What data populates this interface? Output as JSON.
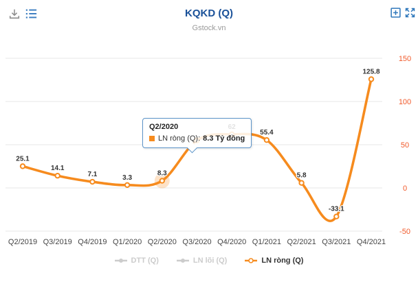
{
  "header": {
    "title": "KQKD (Q)",
    "subtitle": "Gstock.vn"
  },
  "toolbar": {
    "icons": [
      {
        "name": "download-icon",
        "color": "#8d8d8d"
      },
      {
        "name": "chart-context-menu-icon",
        "color": "#3e7fc1"
      },
      {
        "name": "plus-square-icon",
        "color": "#2e77bb"
      },
      {
        "name": "fullscreen-icon",
        "color": "#2e77bb"
      }
    ]
  },
  "tooltip": {
    "title": "Q2/2020",
    "series": "LN ròng (Q)",
    "separator": ":",
    "value": "8.3 Tỷ đồng",
    "marker_color": "#f68b1e",
    "border_color": "#5b93c8"
  },
  "legend": {
    "items": [
      {
        "label": "DTT (Q)",
        "enabled": false
      },
      {
        "label": "LN lõi (Q)",
        "enabled": false
      },
      {
        "label": "LN ròng (Q)",
        "enabled": true,
        "color": "#f68b1e"
      }
    ]
  },
  "colors": {
    "series_line": "#f68b1e",
    "y_axis_labels": "#f1592a",
    "x_axis_labels": "#444444",
    "grid": "#e7e7e7",
    "data_labels": "#333333",
    "title": "#1a5199",
    "subtitle": "#9a9a9a"
  },
  "chart_data": {
    "type": "line",
    "title": "KQKD (Q)",
    "subtitle": "Gstock.vn",
    "unit": "Tỷ đồng",
    "categories": [
      "Q2/2019",
      "Q3/2019",
      "Q4/2019",
      "Q1/2020",
      "Q2/2020",
      "Q3/2020",
      "Q4/2020",
      "Q1/2021",
      "Q2/2021",
      "Q3/2021",
      "Q4/2021"
    ],
    "series": [
      {
        "name": "LN ròng (Q)",
        "color": "#f68b1e",
        "visible": true,
        "values": [
          25.1,
          14.1,
          7.1,
          3.3,
          8.3,
          55,
          62,
          55.4,
          5.8,
          -33.1,
          125.8
        ],
        "visible_labels": [
          "25.1",
          "14.1",
          "7.1",
          "3.3",
          "8.3",
          null,
          "62",
          "55.4",
          "5.8",
          "-33.1",
          "125.8"
        ]
      },
      {
        "name": "DTT (Q)",
        "visible": false
      },
      {
        "name": "LN lõi (Q)",
        "visible": false
      }
    ],
    "hovered_point": {
      "series": "LN ròng (Q)",
      "category": "Q2/2020",
      "index": 4,
      "value": 8.3
    },
    "y_axis": {
      "position": "right",
      "min": -50,
      "max": 150,
      "ticks": [
        -50,
        0,
        50,
        100,
        150
      ]
    },
    "grid": true,
    "legend_position": "bottom"
  }
}
